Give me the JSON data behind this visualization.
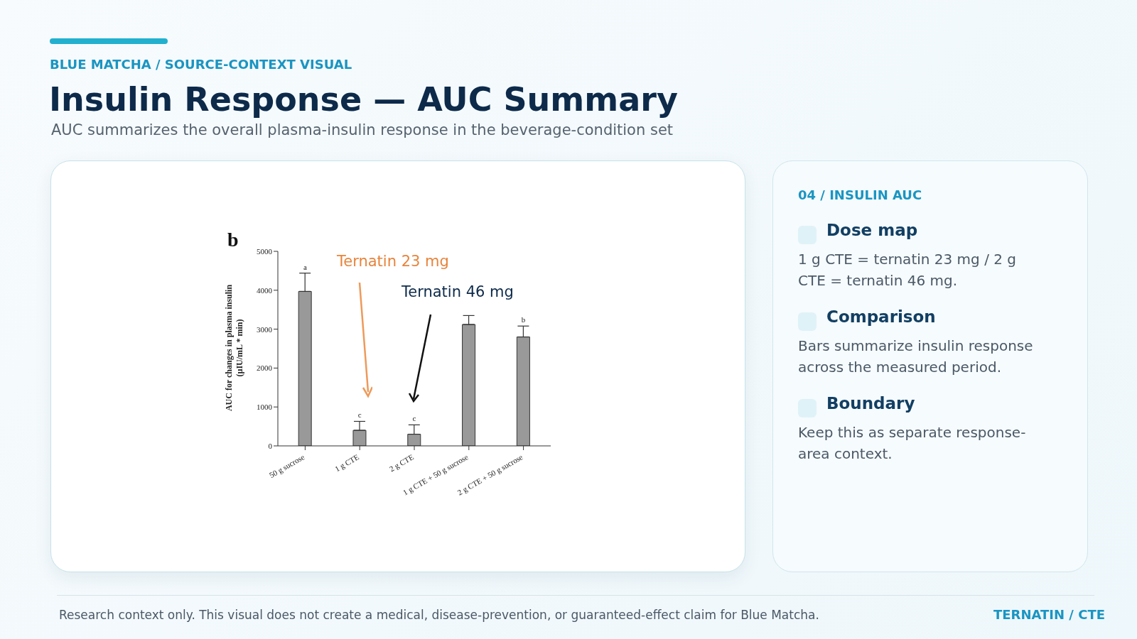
{
  "chart_data": {
    "type": "bar",
    "title": "Insulin Response — AUC Summary",
    "subtitle": "AUC summarizes the overall plasma-insulin response in the beverage-condition set",
    "ylabel": "AUC for changes in plasma insulin\n(µIU/mL * min)",
    "categories": [
      "50 g sucrose",
      "1 g CTE",
      "2 g CTE",
      "1 g CTE + 50 g sucrose",
      "2 g CTE + 50 g sucrose"
    ],
    "values": [
      3970,
      400,
      300,
      3120,
      2800
    ],
    "color": "#999999",
    "errors": [
      [
        3970,
        4440
      ],
      [
        400,
        630
      ],
      [
        300,
        540
      ],
      [
        3120,
        3350
      ],
      [
        2800,
        3080
      ]
    ],
    "ylim": [
      0,
      5000
    ],
    "yticks": [
      0,
      1000,
      2000,
      3000,
      4000,
      5000
    ],
    "annotations": [
      "BLUE MATCHA / SOURCE-CONTEXT VISUAL",
      "b",
      "Ternatin 23 mg",
      "Ternatin 46 mg",
      {
        "text": "a",
        "x": "50 g sucrose",
        "y": 4440
      },
      {
        "text": "c",
        "x": "1 g CTE",
        "y": 630
      },
      {
        "text": "c",
        "x": "2 g CTE",
        "y": 540
      },
      {
        "text": "b",
        "x": "2 g CTE + 50 g sucrose",
        "y": 3080
      },
      "04 / INSULIN AUC",
      "Dose map",
      "1 g CTE = ternatin 23 mg / 2 g CTE = ternatin 46 mg.",
      "Comparison",
      "Bars summarize insulin response across the measured period.",
      "Boundary",
      "Keep this as separate response-area context.",
      "Research context only. This visual does not create a medical, disease-prevention, or guaranteed-effect claim for Blue Matcha.",
      "TERNATIN / CTE"
    ]
  }
}
